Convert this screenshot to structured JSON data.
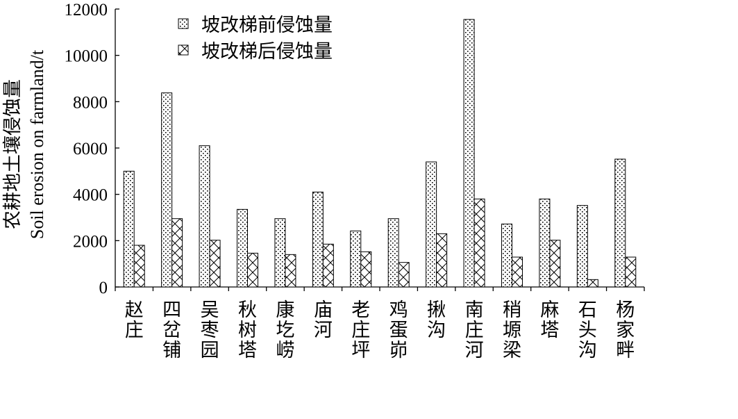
{
  "chart_data": {
    "type": "bar",
    "title": "",
    "xlabel": "",
    "ylabel_cn": "农耕地土壤侵蚀量",
    "ylabel_en": "Soil erosion on farmland/t",
    "ylim": [
      0,
      12000
    ],
    "yticks": [
      0,
      2000,
      4000,
      6000,
      8000,
      10000,
      12000
    ],
    "ytick_labels": [
      "0",
      "2000",
      "4000",
      "6000",
      "8000",
      "10000",
      "12000"
    ],
    "legend_position": "top-center",
    "categories": [
      "赵庄",
      "四岔铺",
      "吴枣园",
      "秋树塔",
      "康圪崂",
      "庙河",
      "老庄坪",
      "鸡蛋峁",
      "揪沟",
      "南庄河",
      "稍塬梁",
      "麻塔",
      "石头沟",
      "杨家畔"
    ],
    "series": [
      {
        "name": "坡改梯前侵蚀量",
        "pattern": "dots",
        "values": [
          5000,
          8380,
          6100,
          3350,
          2950,
          4100,
          2420,
          2950,
          5400,
          11550,
          2720,
          3800,
          3520,
          5520
        ]
      },
      {
        "name": "坡改梯后侵蚀量",
        "pattern": "crosshatch",
        "values": [
          1800,
          2950,
          2020,
          1460,
          1400,
          1850,
          1520,
          1060,
          2300,
          3800,
          1290,
          2020,
          320,
          1290
        ]
      }
    ]
  }
}
